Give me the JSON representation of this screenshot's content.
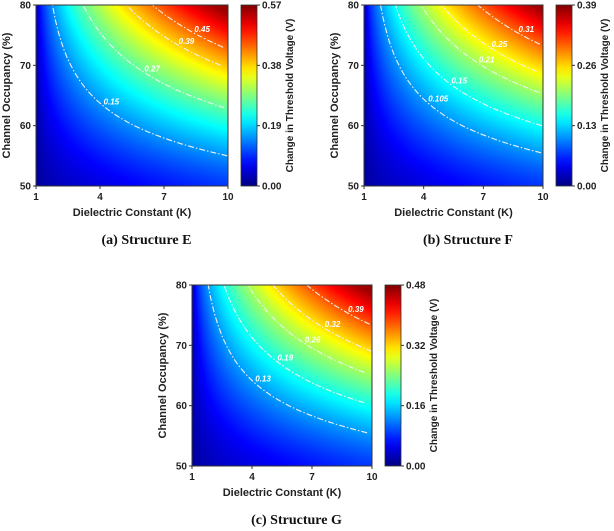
{
  "chart_data": [
    {
      "type": "heatmap",
      "caption": "(a) Structure E",
      "xlabel": "Dielectric Constant (K)",
      "ylabel": "Channel Occupancy (%)",
      "colorbar_label": "Change in Threshold Voltage (V)",
      "xlim": [
        1,
        10
      ],
      "ylim": [
        50,
        80
      ],
      "xticks": [
        "1",
        "4",
        "7",
        "10"
      ],
      "yticks": [
        "50",
        "60",
        "70",
        "80"
      ],
      "colorbar_range": [
        0.0,
        0.57
      ],
      "colorbar_ticks": [
        "0.00",
        "0.19",
        "0.38",
        "0.57"
      ],
      "contour_levels": [
        0.15,
        0.27,
        0.39,
        0.45
      ],
      "contour_labels": [
        "0.15",
        "0.15",
        "0.27",
        "0.27",
        "0.39",
        "0.45"
      ],
      "colormap": "jet"
    },
    {
      "type": "heatmap",
      "caption": "(b) Structure F",
      "xlabel": "Dielectric Constant (K)",
      "ylabel": "Channel Occupancy (%)",
      "colorbar_label": "Change in Threshold Voltage (V)",
      "xlim": [
        1,
        10
      ],
      "ylim": [
        50,
        80
      ],
      "xticks": [
        "1",
        "4",
        "7",
        "10"
      ],
      "yticks": [
        "50",
        "60",
        "70",
        "80"
      ],
      "colorbar_range": [
        0.0,
        0.39
      ],
      "colorbar_ticks": [
        "0.00",
        "0.13",
        "0.26",
        "0.39"
      ],
      "contour_levels": [
        0.105,
        0.15,
        0.21,
        0.25,
        0.31
      ],
      "contour_labels": [
        "0.105",
        "0.105",
        "0.15",
        "0.21",
        "0.25",
        "0.31"
      ],
      "colormap": "jet"
    },
    {
      "type": "heatmap",
      "caption": "(c) Structure G",
      "xlabel": "Dielectric Constant (K)",
      "ylabel": "Channel Occupancy (%)",
      "colorbar_label": "Change in Threshold Voltage (V)",
      "xlim": [
        1,
        10
      ],
      "ylim": [
        50,
        80
      ],
      "xticks": [
        "1",
        "4",
        "7",
        "10"
      ],
      "yticks": [
        "50",
        "60",
        "70",
        "80"
      ],
      "colorbar_range": [
        0.0,
        0.48
      ],
      "colorbar_ticks": [
        "0.00",
        "0.16",
        "0.32",
        "0.48"
      ],
      "contour_levels": [
        0.13,
        0.19,
        0.26,
        0.32,
        0.39
      ],
      "contour_labels": [
        "0.13",
        "0.13",
        "0.19",
        "0.26",
        "0.32",
        "0.39"
      ],
      "colormap": "jet"
    }
  ]
}
